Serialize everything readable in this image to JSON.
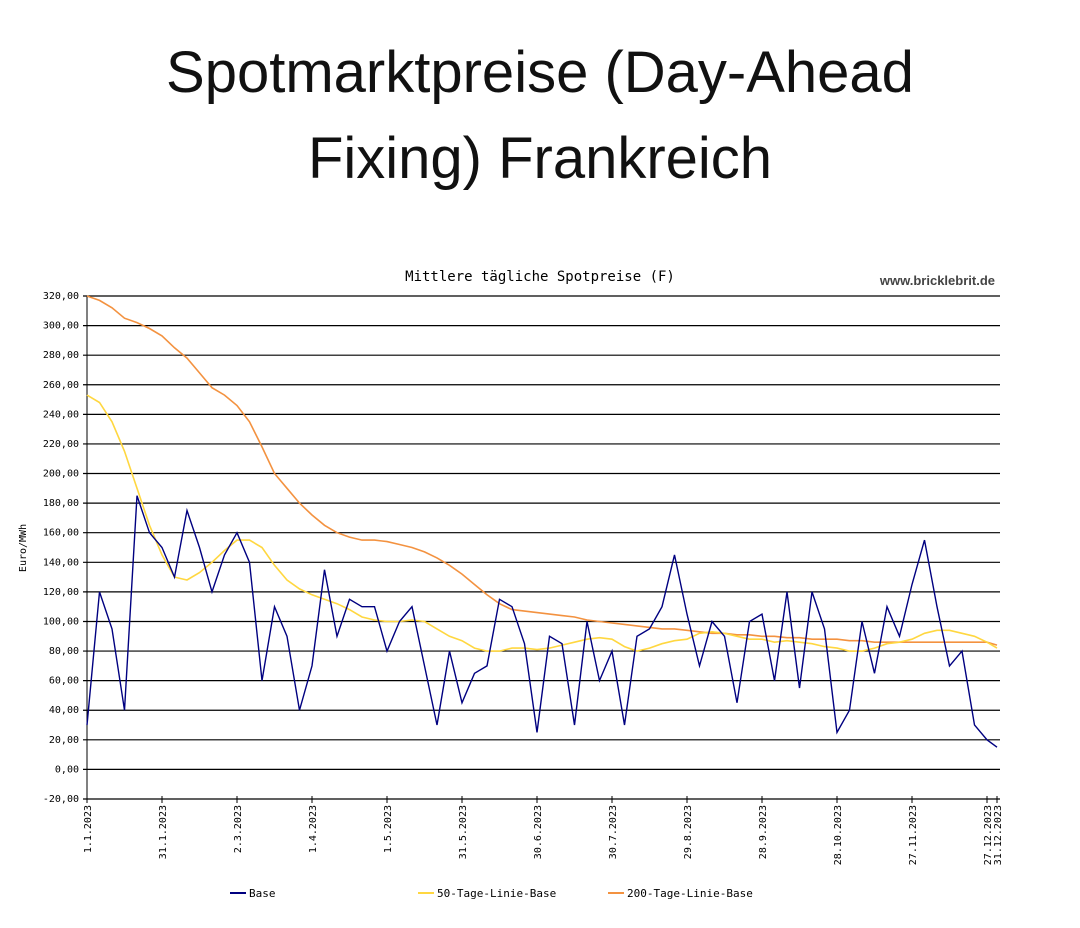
{
  "header": {
    "title": "Spotmarktpreise (Day-Ahead Fixing) Frankreich"
  },
  "chart_data": {
    "type": "line",
    "title": "Mittlere tägliche Spotpreise (F)",
    "watermark": "www.bricklebrit.de",
    "y_label": "Euro/MWh",
    "grid": true,
    "xlim": [
      "1.1.2023",
      "31.12.2023"
    ],
    "xticks": [
      "1.1.2023",
      "31.1.2023",
      "2.3.2023",
      "1.4.2023",
      "1.5.2023",
      "31.5.2023",
      "30.6.2023",
      "30.7.2023",
      "29.8.2023",
      "28.9.2023",
      "28.10.2023",
      "27.11.2023",
      "27.12.2023",
      "31.12.2023"
    ],
    "ylim": [
      -20,
      320
    ],
    "yticks": [
      {
        "value": -20,
        "label": "-20,00"
      },
      {
        "value": 0,
        "label": "0,00"
      },
      {
        "value": 20,
        "label": "20,00"
      },
      {
        "value": 40,
        "label": "40,00"
      },
      {
        "value": 60,
        "label": "60,00"
      },
      {
        "value": 80,
        "label": "80,00"
      },
      {
        "value": 100,
        "label": "100,00"
      },
      {
        "value": 120,
        "label": "120,00"
      },
      {
        "value": 140,
        "label": "140,00"
      },
      {
        "value": 160,
        "label": "160,00"
      },
      {
        "value": 180,
        "label": "180,00"
      },
      {
        "value": 200,
        "label": "200,00"
      },
      {
        "value": 220,
        "label": "220,00"
      },
      {
        "value": 240,
        "label": "240,00"
      },
      {
        "value": 260,
        "label": "260,00"
      },
      {
        "value": 280,
        "label": "280,00"
      },
      {
        "value": 300,
        "label": "300,00"
      },
      {
        "value": 320,
        "label": "320,00"
      }
    ],
    "x": [
      "1.1.2023",
      "6.1.2023",
      "11.1.2023",
      "16.1.2023",
      "21.1.2023",
      "26.1.2023",
      "31.1.2023",
      "5.2.2023",
      "10.2.2023",
      "15.2.2023",
      "20.2.2023",
      "25.2.2023",
      "2.3.2023",
      "7.3.2023",
      "12.3.2023",
      "17.3.2023",
      "22.3.2023",
      "27.3.2023",
      "1.4.2023",
      "6.4.2023",
      "11.4.2023",
      "16.4.2023",
      "21.4.2023",
      "26.4.2023",
      "1.5.2023",
      "6.5.2023",
      "11.5.2023",
      "16.5.2023",
      "21.5.2023",
      "26.5.2023",
      "31.5.2023",
      "5.6.2023",
      "10.6.2023",
      "15.6.2023",
      "20.6.2023",
      "25.6.2023",
      "30.6.2023",
      "5.7.2023",
      "10.7.2023",
      "15.7.2023",
      "20.7.2023",
      "25.7.2023",
      "30.7.2023",
      "4.8.2023",
      "9.8.2023",
      "14.8.2023",
      "19.8.2023",
      "24.8.2023",
      "29.8.2023",
      "3.9.2023",
      "8.9.2023",
      "13.9.2023",
      "18.9.2023",
      "23.9.2023",
      "28.9.2023",
      "3.10.2023",
      "8.10.2023",
      "13.10.2023",
      "18.10.2023",
      "23.10.2023",
      "28.10.2023",
      "2.11.2023",
      "7.11.2023",
      "12.11.2023",
      "17.11.2023",
      "22.11.2023",
      "27.11.2023",
      "2.12.2023",
      "7.12.2023",
      "12.12.2023",
      "17.12.2023",
      "22.12.2023",
      "27.12.2023",
      "31.12.2023"
    ],
    "series": [
      {
        "name": "Base",
        "color": "#000080",
        "values": [
          30,
          120,
          95,
          40,
          185,
          160,
          150,
          130,
          175,
          150,
          120,
          145,
          160,
          140,
          60,
          110,
          90,
          40,
          70,
          135,
          90,
          115,
          110,
          110,
          80,
          100,
          110,
          70,
          30,
          80,
          45,
          65,
          70,
          115,
          110,
          85,
          25,
          90,
          85,
          30,
          100,
          60,
          80,
          30,
          90,
          95,
          110,
          145,
          105,
          70,
          100,
          90,
          45,
          100,
          105,
          60,
          120,
          55,
          120,
          95,
          25,
          40,
          100,
          65,
          110,
          90,
          125,
          155,
          110,
          70,
          80,
          30,
          20,
          15
        ]
      },
      {
        "name": "50-Tage-Linie-Base",
        "color": "#ffd740",
        "values": [
          253,
          248,
          235,
          215,
          190,
          165,
          145,
          130,
          128,
          133,
          140,
          148,
          155,
          155,
          150,
          138,
          128,
          122,
          118,
          115,
          112,
          108,
          103,
          101,
          100,
          100,
          101,
          100,
          95,
          90,
          87,
          82,
          80,
          80,
          82,
          82,
          81,
          82,
          84,
          86,
          88,
          89,
          88,
          83,
          80,
          82,
          85,
          87,
          88,
          92,
          93,
          92,
          90,
          88,
          88,
          86,
          87,
          86,
          85,
          83,
          82,
          80,
          80,
          82,
          85,
          86,
          88,
          92,
          94,
          94,
          92,
          90,
          86,
          82
        ]
      },
      {
        "name": "200-Tage-Linie-Base",
        "color": "#f39240",
        "values": [
          320,
          317,
          312,
          305,
          302,
          298,
          293,
          285,
          278,
          268,
          258,
          253,
          246,
          235,
          218,
          200,
          190,
          180,
          172,
          165,
          160,
          157,
          155,
          155,
          154,
          152,
          150,
          147,
          143,
          138,
          132,
          125,
          118,
          112,
          108,
          107,
          106,
          105,
          104,
          103,
          101,
          100,
          99,
          98,
          97,
          96,
          95,
          95,
          94,
          93,
          92,
          92,
          91,
          91,
          90,
          90,
          89,
          89,
          88,
          88,
          88,
          87,
          87,
          86,
          86,
          86,
          86,
          86,
          86,
          86,
          86,
          86,
          86,
          84
        ]
      }
    ]
  }
}
